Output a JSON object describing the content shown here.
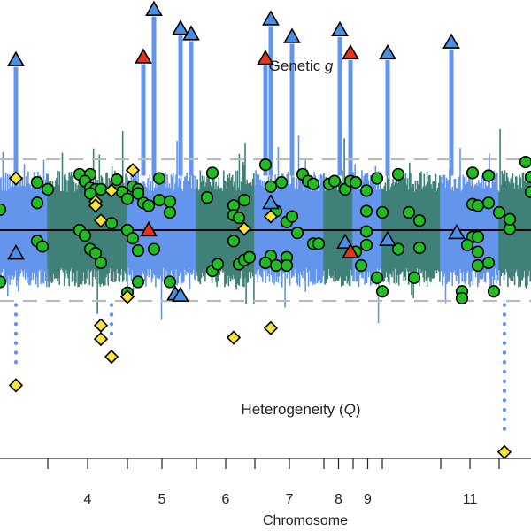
{
  "chart_data": {
    "type": "scatter",
    "title": "Genetic g",
    "title_italic_part": "g",
    "lower_title": "Heterogeneity (Q)",
    "lower_title_italic_part": "Q",
    "xlabel": "Chromosome",
    "chromosome_ticks": [
      "4",
      "5",
      "6",
      "7",
      "8",
      "9",
      "11"
    ],
    "chromosome_bands": [
      {
        "chrom": "3",
        "start": 0.0,
        "end": 0.09,
        "color": "#6495ED"
      },
      {
        "chrom": "4",
        "start": 0.09,
        "end": 0.24,
        "color": "#3F8079"
      },
      {
        "chrom": "5",
        "start": 0.24,
        "end": 0.37,
        "color": "#6495ED"
      },
      {
        "chrom": "6",
        "start": 0.37,
        "end": 0.48,
        "color": "#3F8079"
      },
      {
        "chrom": "7",
        "start": 0.48,
        "end": 0.61,
        "color": "#6495ED"
      },
      {
        "chrom": "8",
        "start": 0.61,
        "end": 0.665,
        "color": "#3F8079"
      },
      {
        "chrom": "9",
        "start": 0.665,
        "end": 0.72,
        "color": "#6495ED"
      },
      {
        "chrom": "10",
        "start": 0.72,
        "end": 0.83,
        "color": "#3F8079"
      },
      {
        "chrom": "11",
        "start": 0.83,
        "end": 0.94,
        "color": "#6495ED"
      },
      {
        "chrom": "12",
        "start": 0.94,
        "end": 1.0,
        "color": "#3F8079"
      }
    ],
    "y_range": [
      -1.3,
      1.3
    ],
    "upper_threshold": 0.52,
    "lower_threshold": -0.52,
    "colors": {
      "blue_band": "#6495ED",
      "teal_band": "#3F8079",
      "green_marker": "#22BB22",
      "blue_marker": "#4A90E2",
      "red_marker": "#E8341C",
      "yellow_marker": "#F7E33A",
      "threshold": "#BBBBBB",
      "zero_line": "#000000"
    },
    "markers": {
      "circles": [
        [
          0.0,
          0.15
        ],
        [
          0.07,
          0.2
        ],
        [
          0.07,
          0.35
        ],
        [
          0.09,
          0.3
        ],
        [
          0.07,
          -0.08
        ],
        [
          0.08,
          -0.12
        ],
        [
          0.0,
          -0.38
        ],
        [
          0.15,
          0.41
        ],
        [
          0.17,
          0.41
        ],
        [
          0.16,
          0.36
        ],
        [
          0.17,
          0.31
        ],
        [
          0.18,
          0.3
        ],
        [
          0.19,
          0.3
        ],
        [
          0.15,
          0.0
        ],
        [
          0.16,
          -0.04
        ],
        [
          0.17,
          -0.14
        ],
        [
          0.18,
          -0.17
        ],
        [
          0.19,
          -0.24
        ],
        [
          0.22,
          0.37
        ],
        [
          0.23,
          0.28
        ],
        [
          0.24,
          0.23
        ],
        [
          0.25,
          0.32
        ],
        [
          0.26,
          0.3
        ],
        [
          0.27,
          0.2
        ],
        [
          0.24,
          0.0
        ],
        [
          0.25,
          -0.06
        ],
        [
          0.26,
          -0.15
        ],
        [
          0.26,
          -0.38
        ],
        [
          0.24,
          -0.46
        ],
        [
          0.17,
          0.27
        ],
        [
          0.21,
          0.05
        ],
        [
          0.26,
          0.27
        ],
        [
          0.28,
          0.18
        ],
        [
          0.3,
          0.38
        ],
        [
          0.3,
          0.22
        ],
        [
          0.32,
          0.13
        ],
        [
          0.32,
          0.21
        ],
        [
          0.29,
          -0.14
        ],
        [
          0.32,
          -0.38
        ],
        [
          0.4,
          0.42
        ],
        [
          0.39,
          0.24
        ],
        [
          0.4,
          -0.3
        ],
        [
          0.41,
          -0.25
        ],
        [
          0.44,
          0.18
        ],
        [
          0.44,
          0.11
        ],
        [
          0.45,
          0.09
        ],
        [
          0.46,
          0.22
        ],
        [
          0.44,
          -0.08
        ],
        [
          0.45,
          -0.25
        ],
        [
          0.46,
          -0.22
        ],
        [
          0.47,
          -0.2
        ],
        [
          0.5,
          0.48
        ],
        [
          0.51,
          0.32
        ],
        [
          0.52,
          0.14
        ],
        [
          0.51,
          -0.19
        ],
        [
          0.52,
          -0.26
        ],
        [
          0.53,
          0.35
        ],
        [
          0.54,
          0.06
        ],
        [
          0.55,
          0.1
        ],
        [
          0.56,
          -0.02
        ],
        [
          0.54,
          -0.2
        ],
        [
          0.54,
          -0.26
        ],
        [
          0.5,
          -0.24
        ],
        [
          0.57,
          0.41
        ],
        [
          0.58,
          0.36
        ],
        [
          0.59,
          0.34
        ],
        [
          0.59,
          -0.1
        ],
        [
          0.6,
          -0.1
        ],
        [
          0.62,
          0.34
        ],
        [
          0.63,
          0.36
        ],
        [
          0.65,
          0.3
        ],
        [
          0.66,
          0.36
        ],
        [
          0.67,
          -0.16
        ],
        [
          0.68,
          -0.26
        ],
        [
          0.67,
          0.35
        ],
        [
          0.69,
          0.29
        ],
        [
          0.69,
          0.14
        ],
        [
          0.69,
          -0.01
        ],
        [
          0.69,
          -0.11
        ],
        [
          0.71,
          0.38
        ],
        [
          0.72,
          0.13
        ],
        [
          0.71,
          -0.35
        ],
        [
          0.72,
          -0.45
        ],
        [
          0.75,
          0.41
        ],
        [
          0.77,
          0.13
        ],
        [
          0.79,
          0.07
        ],
        [
          0.79,
          -0.13
        ],
        [
          0.89,
          0.19
        ],
        [
          0.9,
          0.18
        ],
        [
          0.89,
          -0.05
        ],
        [
          0.9,
          -0.05
        ],
        [
          0.92,
          0.4
        ],
        [
          0.92,
          0.2
        ],
        [
          0.9,
          -0.16
        ],
        [
          0.9,
          -0.26
        ],
        [
          0.93,
          -0.45
        ],
        [
          0.96,
          0.01
        ],
        [
          0.96,
          0.08
        ],
        [
          0.87,
          -0.45
        ],
        [
          0.87,
          -0.5
        ],
        [
          0.88,
          -0.11
        ],
        [
          0.89,
          0.42
        ],
        [
          0.99,
          0.5
        ],
        [
          1.0,
          0.39
        ],
        [
          1.0,
          0.28
        ],
        [
          0.75,
          -0.14
        ],
        [
          0.78,
          -0.35
        ],
        [
          0.92,
          -0.24
        ],
        [
          0.94,
          0.13
        ]
      ],
      "blue_triangles": [
        [
          0.03,
          1.25
        ],
        [
          0.03,
          -0.17
        ],
        [
          0.29,
          1.62
        ],
        [
          0.34,
          1.48
        ],
        [
          0.36,
          1.44
        ],
        [
          0.33,
          -0.47
        ],
        [
          0.34,
          -0.48
        ],
        [
          0.51,
          1.55
        ],
        [
          0.51,
          0.2
        ],
        [
          0.55,
          1.42
        ],
        [
          0.64,
          1.47
        ],
        [
          0.65,
          -0.09
        ],
        [
          0.73,
          1.3
        ],
        [
          0.73,
          -0.07
        ],
        [
          0.85,
          1.38
        ],
        [
          0.86,
          -0.02
        ]
      ],
      "red_triangles": [
        [
          0.27,
          1.27
        ],
        [
          0.28,
          0.0
        ],
        [
          0.5,
          1.26
        ],
        [
          0.66,
          1.3
        ],
        [
          0.66,
          -0.16
        ]
      ],
      "yellow_diamonds": [
        [
          0.03,
          0.38
        ],
        [
          0.03,
          -1.14
        ],
        [
          0.18,
          0.21
        ],
        [
          0.18,
          0.18
        ],
        [
          0.19,
          0.07
        ],
        [
          0.19,
          -0.7
        ],
        [
          0.19,
          -0.8
        ],
        [
          0.21,
          -0.93
        ],
        [
          0.21,
          0.29
        ],
        [
          0.25,
          0.44
        ],
        [
          0.24,
          -0.49
        ],
        [
          0.46,
          0.01
        ],
        [
          0.44,
          -0.79
        ],
        [
          0.51,
          -0.72
        ],
        [
          0.51,
          0.1
        ],
        [
          0.95,
          -1.63
        ]
      ]
    }
  }
}
